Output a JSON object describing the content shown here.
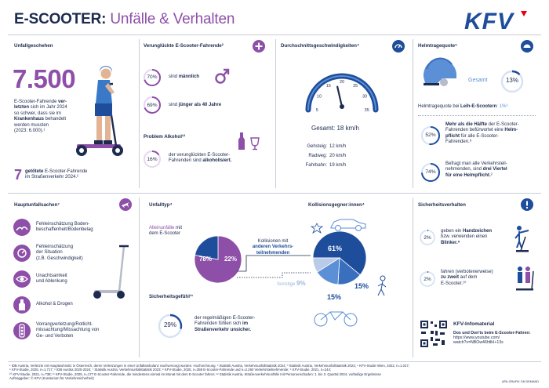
{
  "title": {
    "part1": "E-SCOOTER:",
    "part2": " Unfälle & Verhalten"
  },
  "logo": {
    "text": "KFV"
  },
  "accident": {
    "header": "Unfallgeschehen",
    "big_number": "7.500",
    "text_l1": "E-Scooter-Fahrende ",
    "text_l1b": "ver-",
    "text_l2": "letzten",
    "text_l2b": " sich im Jahr 2024",
    "text_l3": "so schwer, dass sie im",
    "text_l4": "Krankenhaus",
    "text_l4b": " behandelt",
    "text_l5": "werden mussten",
    "text_l6": "(2023: 6.000).¹",
    "killed_number": "7",
    "killed_text_b": "getötete",
    "killed_text_l1": " E-Scooter-Fahrende",
    "killed_text_l2": "im Straßenverkehr 2024.²"
  },
  "injured": {
    "header": "Verunglückte E-Scooter-Fahrende²",
    "male_pct": "70%",
    "male_text": "sind ",
    "male_text_b": "männlich",
    "younger_pct": "69%",
    "younger_text": "sind ",
    "younger_text_b": "jünger als 40 Jahre",
    "alcohol_header": "Problem Alkohol¹²",
    "alcohol_pct": "16%",
    "alcohol_l1": "der verunglückten E-Scooter-",
    "alcohol_l2": "Fahrenden sind ",
    "alcohol_l2b": "alkoholisiert."
  },
  "speed": {
    "header": "Durchschnittsgeschwindigkeiten⁴",
    "gauge_ticks": [
      "0",
      "5",
      "10",
      "15",
      "20",
      "25",
      "30",
      "35",
      "40"
    ],
    "gauge_value": 18,
    "total_label": "Gesamt: 18 km/h",
    "rows": [
      {
        "label": "Gehsteig:",
        "value": "12 km/h"
      },
      {
        "label": "Radweg:",
        "value": "20 km/h"
      },
      {
        "label": "Fahrbahn:",
        "value": "19 km/h"
      }
    ]
  },
  "helmet": {
    "header": "Helmtragequote⁵",
    "total_label": "Gesamt",
    "total_pct": "13%",
    "rental_text": "Helmtragequote bei ",
    "rental_text_b": "Leih-E-Scootern",
    "rental_pct": ": 1%⁶",
    "half_pct": "52%",
    "half_l1b": "Mehr als die Hälfte",
    "half_l1": " der E-Scooter-",
    "half_l2": "Fahrenden befürwortet eine ",
    "half_l2b": "Helm-",
    "half_l3b": "pflicht",
    "half_l3": " für alle E-Scooter-",
    "half_l4": "Fahrenden.⁸",
    "quarter_pct": "74%",
    "quarter_l1": "Befragt man alle Verkehrsteil-",
    "quarter_l2": "nehmenden, sind ",
    "quarter_l2b": "drei Viertel",
    "quarter_l3b": "für eine Helmpflicht.",
    "quarter_l3": "²"
  },
  "causes": {
    "header": "Hauptunfallsachen⁷",
    "items": [
      {
        "l1": "Fehleinschätzung Boden-",
        "l2": "beschaffenheit/Bodenbelag",
        "l3": ""
      },
      {
        "l1": "Fehleinschätzung",
        "l2": "der Situation",
        "l3": "(z.B. Geschwindigkeit)"
      },
      {
        "l1": "Unachtsamkeit",
        "l2": "und Ablenkung",
        "l3": ""
      },
      {
        "l1": "Alkohol & Drogen",
        "l2": "",
        "l3": ""
      },
      {
        "l1": "Vorrangverletzung/Rotlicht-",
        "l2": "missachtung/Missachtung von",
        "l3": "Ge- und Verboten"
      }
    ]
  },
  "accident_type": {
    "header": "Unfalltyp⁴",
    "solo_l1": "Alleinunfälle",
    "solo_l1b": " mit",
    "solo_l2": "dem E-Scooter",
    "solo_pct": "78%",
    "other_pct": "22%",
    "coll_l1": "Kollisionen mit",
    "coll_l2b": "anderen Verkehrs-",
    "coll_l3b": "teilnehmenden",
    "chart_data": {
      "type": "pie",
      "title": "Unfalltyp",
      "categories": [
        "Alleinunfälle",
        "Kollisionen"
      ],
      "values": [
        78,
        22
      ]
    }
  },
  "partners": {
    "header": "Kollisionsgegner:innen⁴",
    "pct_car": "61%",
    "pct_bike": "15%",
    "pct_ped": "15%",
    "pct_other": "9%",
    "other_label": "Sonstige",
    "chart_data": {
      "type": "pie",
      "title": "Kollisionsgegner:innen",
      "categories": [
        "PKW",
        "Fußgänger:innen",
        "Fahrrad",
        "Sonstige"
      ],
      "values": [
        61,
        15,
        15,
        9
      ]
    }
  },
  "safety_feeling": {
    "header": "Sicherheitsgefühl¹¹",
    "pct": "29%",
    "l1": "der regelmäßigen E-Scooter-",
    "l2": "Fahrenden fühlen sich ",
    "l2b": "im",
    "l3b": "Straßenverkehr unsicher."
  },
  "safety_behavior": {
    "header": "Sicherheitsverhalten",
    "hand_pct": "2%",
    "hand_l1": "geben ein ",
    "hand_l1b": "Handzeichen",
    "hand_l2": "bzw. verwenden einen",
    "hand_l3b": "Blinker.⁹",
    "two_pct": "2%",
    "two_l1": "fahren (verbotenerweise)",
    "two_l2b": "zu zweit",
    "two_l2": " auf dem",
    "two_l3": "E-Scooter.¹⁰"
  },
  "info": {
    "header": "KFV-Infomaterial",
    "l1b": "Dos und Don'ts beim E-Scooter-Fahren:",
    "l2": "https://www.youtube.com/",
    "l3": "watch?v=NBOw46htlkI+13s"
  },
  "footnotes": {
    "l1": "¹ IDB Austria, Verletzte mit Hauptwohnsitz in Österreich, deren Verletzungen in einer Unfallambulanz nachversorgt wurden. Hochrechnung. ² Statistik Austria, Verkehrsunfallstatistik 2024; ³ Statistik Austria, Verkehrsunfallstatistik 2023; ⁴ KFV-Studie Wien, 2022, n=1.017;",
    "l2": "⁵ KFV-Studie, 2025, n=1.717; ⁶ IDB Austria 2020-2024; ⁷ Statistik Austria, Verkehrsunfallstatistik 2023; ⁸ KFV-Studie, 2025, n=358 E-Scooter-Fahrende und n=2.260 Verkehrsteilnehmende; ⁹ KFV-Studie, 2021, n=244;",
    "l3": "¹⁰ KFV-Studie, 2021, n=738; ¹¹ KFV-Studie, 2025, n=177 E-Scooter-Fahrende, die mindestens einmal im Monat mit dem E-Scooter fahren; ¹² Statistik Austria, Straßenverkehrsunfälle mit Personenschaden: 1. bis 3. Quartal 2024, vorläufige Ergebnisse",
    "l4": "Auftraggeber: © KFV (Kuratorium für Verkehrssicherheit)",
    "credit": "APA-GRAFIK ON DEMAND"
  },
  "colors": {
    "purple": "#8d4fa8",
    "navy": "#1d2b4f",
    "blue": "#1e4d9b",
    "lightblue": "#5b8fd6"
  }
}
